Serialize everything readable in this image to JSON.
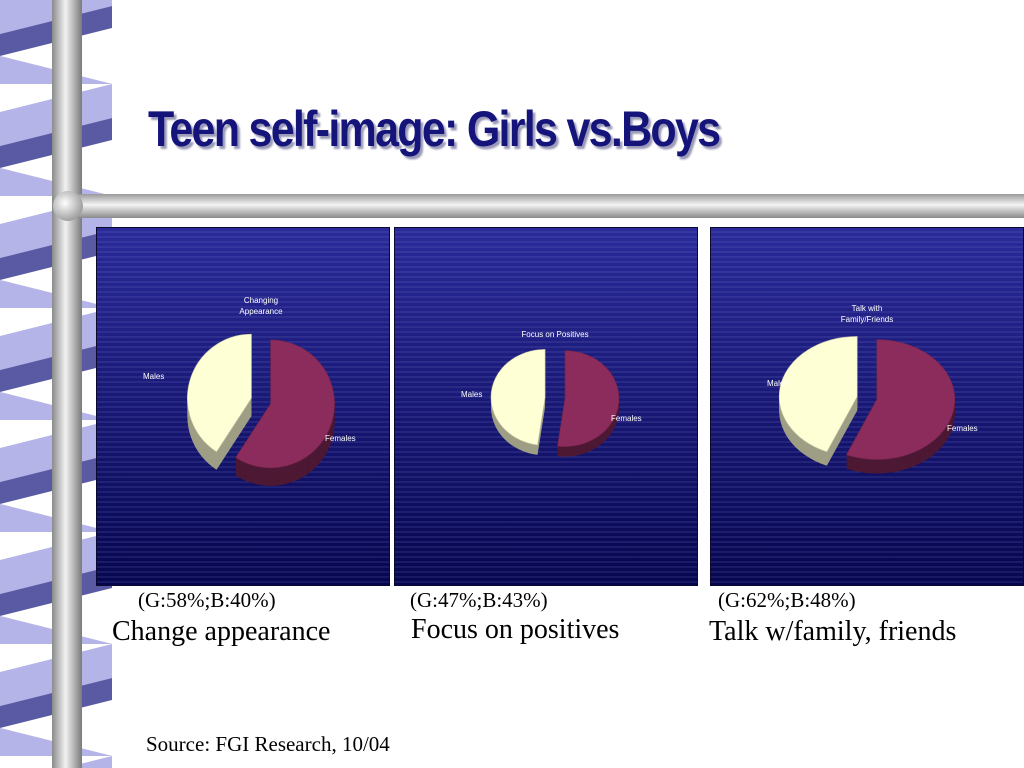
{
  "title": "Teen self-image: Girls vs.Boys",
  "source": "Source: FGI Research, 10/04",
  "colors": {
    "females": "#8c2c5c",
    "males": "#ffffd6",
    "panel_bg": "#12127c",
    "title": "#14147a"
  },
  "chart_data": [
    {
      "type": "pie",
      "title_lines": [
        "Changing",
        "Appearance"
      ],
      "labels": [
        "Females",
        "Males"
      ],
      "values": [
        58,
        40
      ],
      "caption": "Change appearance",
      "percent_text": "(G:58%;B:40%)"
    },
    {
      "type": "pie",
      "title_lines": [
        "Focus on Positives"
      ],
      "labels": [
        "Females",
        "Males"
      ],
      "values": [
        47,
        43
      ],
      "caption": "Focus on positives",
      "percent_text": "(G:47%;B:43%)"
    },
    {
      "type": "pie",
      "title_lines": [
        "Talk with",
        "Family/Friends"
      ],
      "labels": [
        "Females",
        "Males"
      ],
      "values": [
        62,
        48
      ],
      "caption": "Talk w/family, friends",
      "percent_text": "(G:62%;B:48%)"
    }
  ]
}
